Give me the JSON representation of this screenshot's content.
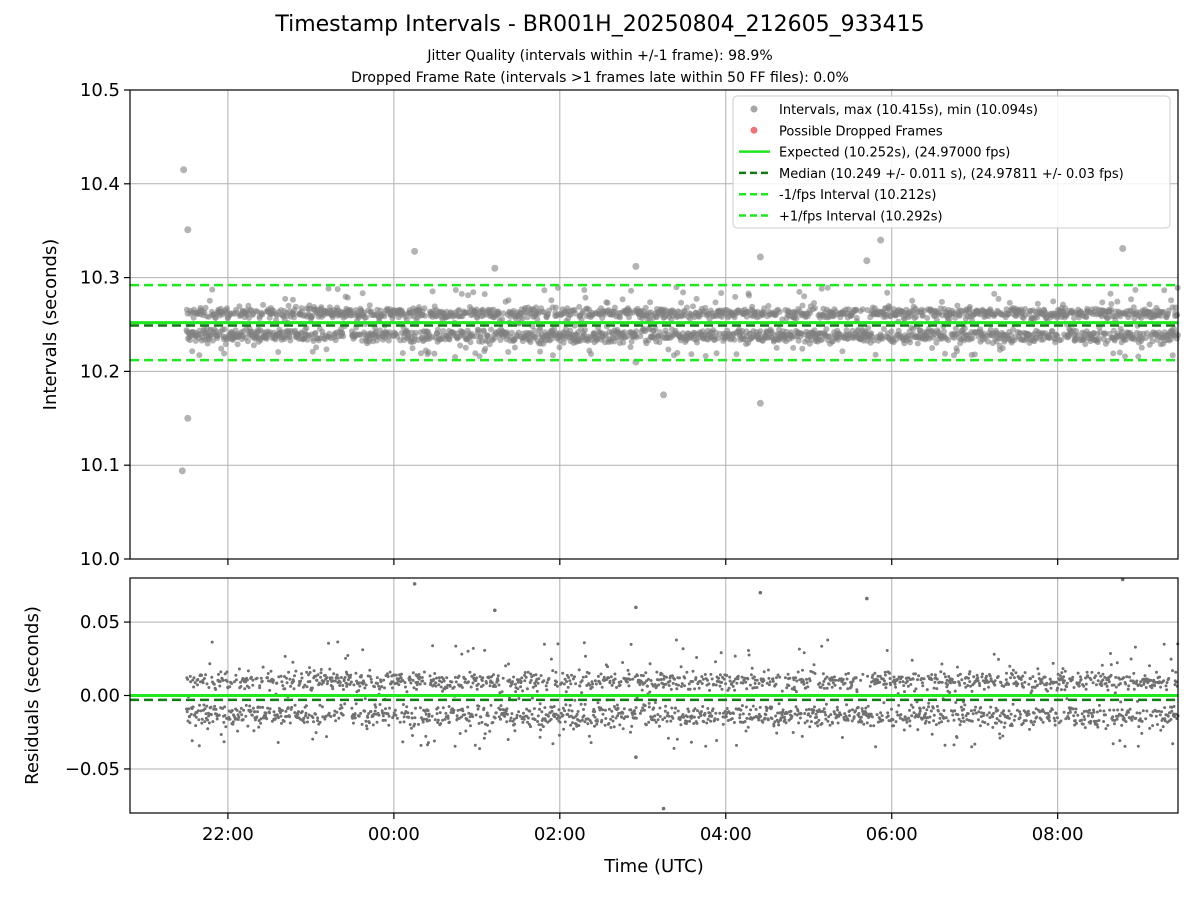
{
  "title": "Timestamp Intervals - BR001H_20250804_212605_933415",
  "subtitles": [
    "Jitter Quality (intervals within +/-1 frame): 98.9%",
    "Dropped Frame Rate (intervals >1 frames late within 50 FF files): 0.0%"
  ],
  "colors": {
    "points": "#808080",
    "dropped": "#e8383d",
    "expected": "#1ee81e",
    "median": "#137a13",
    "interval_band": "#1ee81e",
    "grid": "#b0b0b0"
  },
  "chart_data": [
    {
      "type": "scatter",
      "ylabel": "Intervals (seconds)",
      "ylim": [
        10.0,
        10.5
      ],
      "xlim_hours": [
        20.82,
        33.45
      ],
      "y_ticks": [
        "10.0",
        "10.1",
        "10.2",
        "10.3",
        "10.4",
        "10.5"
      ],
      "y_tick_values": [
        10.0,
        10.1,
        10.2,
        10.3,
        10.4,
        10.5
      ],
      "grid": true,
      "legend_placement": "top-right",
      "legend": [
        "Intervals, max (10.415s), min (10.094s)",
        "Possible Dropped Frames",
        "Expected (10.252s), (24.97000 fps)",
        "Median (10.249 +/- 0.011 s), (24.97811 +/- 0.03 fps)",
        "-1/fps Interval (10.212s)",
        "+1/fps Interval (10.292s)"
      ],
      "reference_lines": {
        "expected": 10.252,
        "median": 10.249,
        "minus_one_fps": 10.212,
        "plus_one_fps": 10.292
      },
      "main_band": {
        "x_start_hours": 21.5,
        "x_end_hours": 33.45,
        "count": 2500,
        "y_range": [
          10.215,
          10.29
        ],
        "clusters_y": [
          10.238,
          10.262
        ]
      },
      "outliers": [
        {
          "x": "21:28",
          "y": 10.415
        },
        {
          "x": "21:31",
          "y": 10.351
        },
        {
          "x": "21:31",
          "y": 10.15
        },
        {
          "x": "21:27",
          "y": 10.094
        },
        {
          "x": "00:15",
          "y": 10.328
        },
        {
          "x": "01:13",
          "y": 10.31
        },
        {
          "x": "02:55",
          "y": 10.312
        },
        {
          "x": "03:15",
          "y": 10.175
        },
        {
          "x": "04:25",
          "y": 10.322
        },
        {
          "x": "04:25",
          "y": 10.166
        },
        {
          "x": "05:42",
          "y": 10.318
        },
        {
          "x": "05:52",
          "y": 10.34
        },
        {
          "x": "08:47",
          "y": 10.331
        },
        {
          "x": "02:55",
          "y": 10.21
        }
      ]
    },
    {
      "type": "scatter",
      "ylabel": "Residuals (seconds)",
      "xlabel": "Time (UTC)",
      "ylim": [
        -0.08,
        0.08
      ],
      "y_ticks": [
        "−0.05",
        "0.00",
        "0.05"
      ],
      "y_tick_values": [
        -0.05,
        0.0,
        0.05
      ],
      "x_ticks": [
        "22:00",
        "00:00",
        "02:00",
        "04:00",
        "06:00",
        "08:00"
      ],
      "x_tick_values_hours": [
        22,
        24,
        26,
        28,
        30,
        32
      ],
      "grid": true,
      "reference_lines": {
        "expected": 0.0,
        "median": -0.003
      },
      "main_band": {
        "count": 2500,
        "y_range": [
          -0.04,
          0.04
        ],
        "clusters_y": [
          -0.014,
          0.01
        ]
      }
    }
  ]
}
